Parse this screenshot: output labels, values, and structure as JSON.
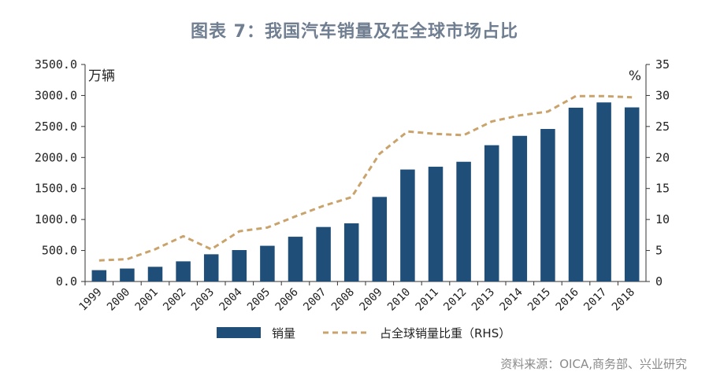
{
  "title": "图表 7：我国汽车销量及在全球市场占比",
  "source": "资料来源：OICA,商务部、兴业研究",
  "chart_data": {
    "type": "bar+line",
    "categories": [
      "1999",
      "2000",
      "2001",
      "2002",
      "2003",
      "2004",
      "2005",
      "2006",
      "2007",
      "2008",
      "2009",
      "2010",
      "2011",
      "2012",
      "2013",
      "2014",
      "2015",
      "2016",
      "2017",
      "2018"
    ],
    "series": [
      {
        "name": "销量",
        "type": "bar",
        "axis": "left",
        "color": "#1f4e79",
        "values": [
          183,
          209,
          237,
          325,
          439,
          507,
          576,
          722,
          879,
          938,
          1364,
          1806,
          1851,
          1931,
          2198,
          2349,
          2460,
          2803,
          2888,
          2808
        ]
      },
      {
        "name": "占全球销量比重（RHS）",
        "type": "line",
        "axis": "right",
        "color": "#c9a36b",
        "style": "dashed",
        "values": [
          3.4,
          3.6,
          5.2,
          7.3,
          5.2,
          8.1,
          8.7,
          10.5,
          12.2,
          13.6,
          20.6,
          24.2,
          23.8,
          23.6,
          25.8,
          26.8,
          27.4,
          29.9,
          29.9,
          29.7
        ]
      }
    ],
    "left_axis": {
      "unit": "万辆",
      "ylim": [
        0,
        3500
      ],
      "ticks": [
        "0.0",
        "500.0",
        "1000.0",
        "1500.0",
        "2000.0",
        "2500.0",
        "3000.0",
        "3500.0"
      ]
    },
    "right_axis": {
      "unit": "%",
      "ylim": [
        0,
        35
      ],
      "ticks": [
        "0",
        "5",
        "10",
        "15",
        "20",
        "25",
        "30",
        "35"
      ]
    },
    "grid": false,
    "legend_position": "bottom"
  }
}
